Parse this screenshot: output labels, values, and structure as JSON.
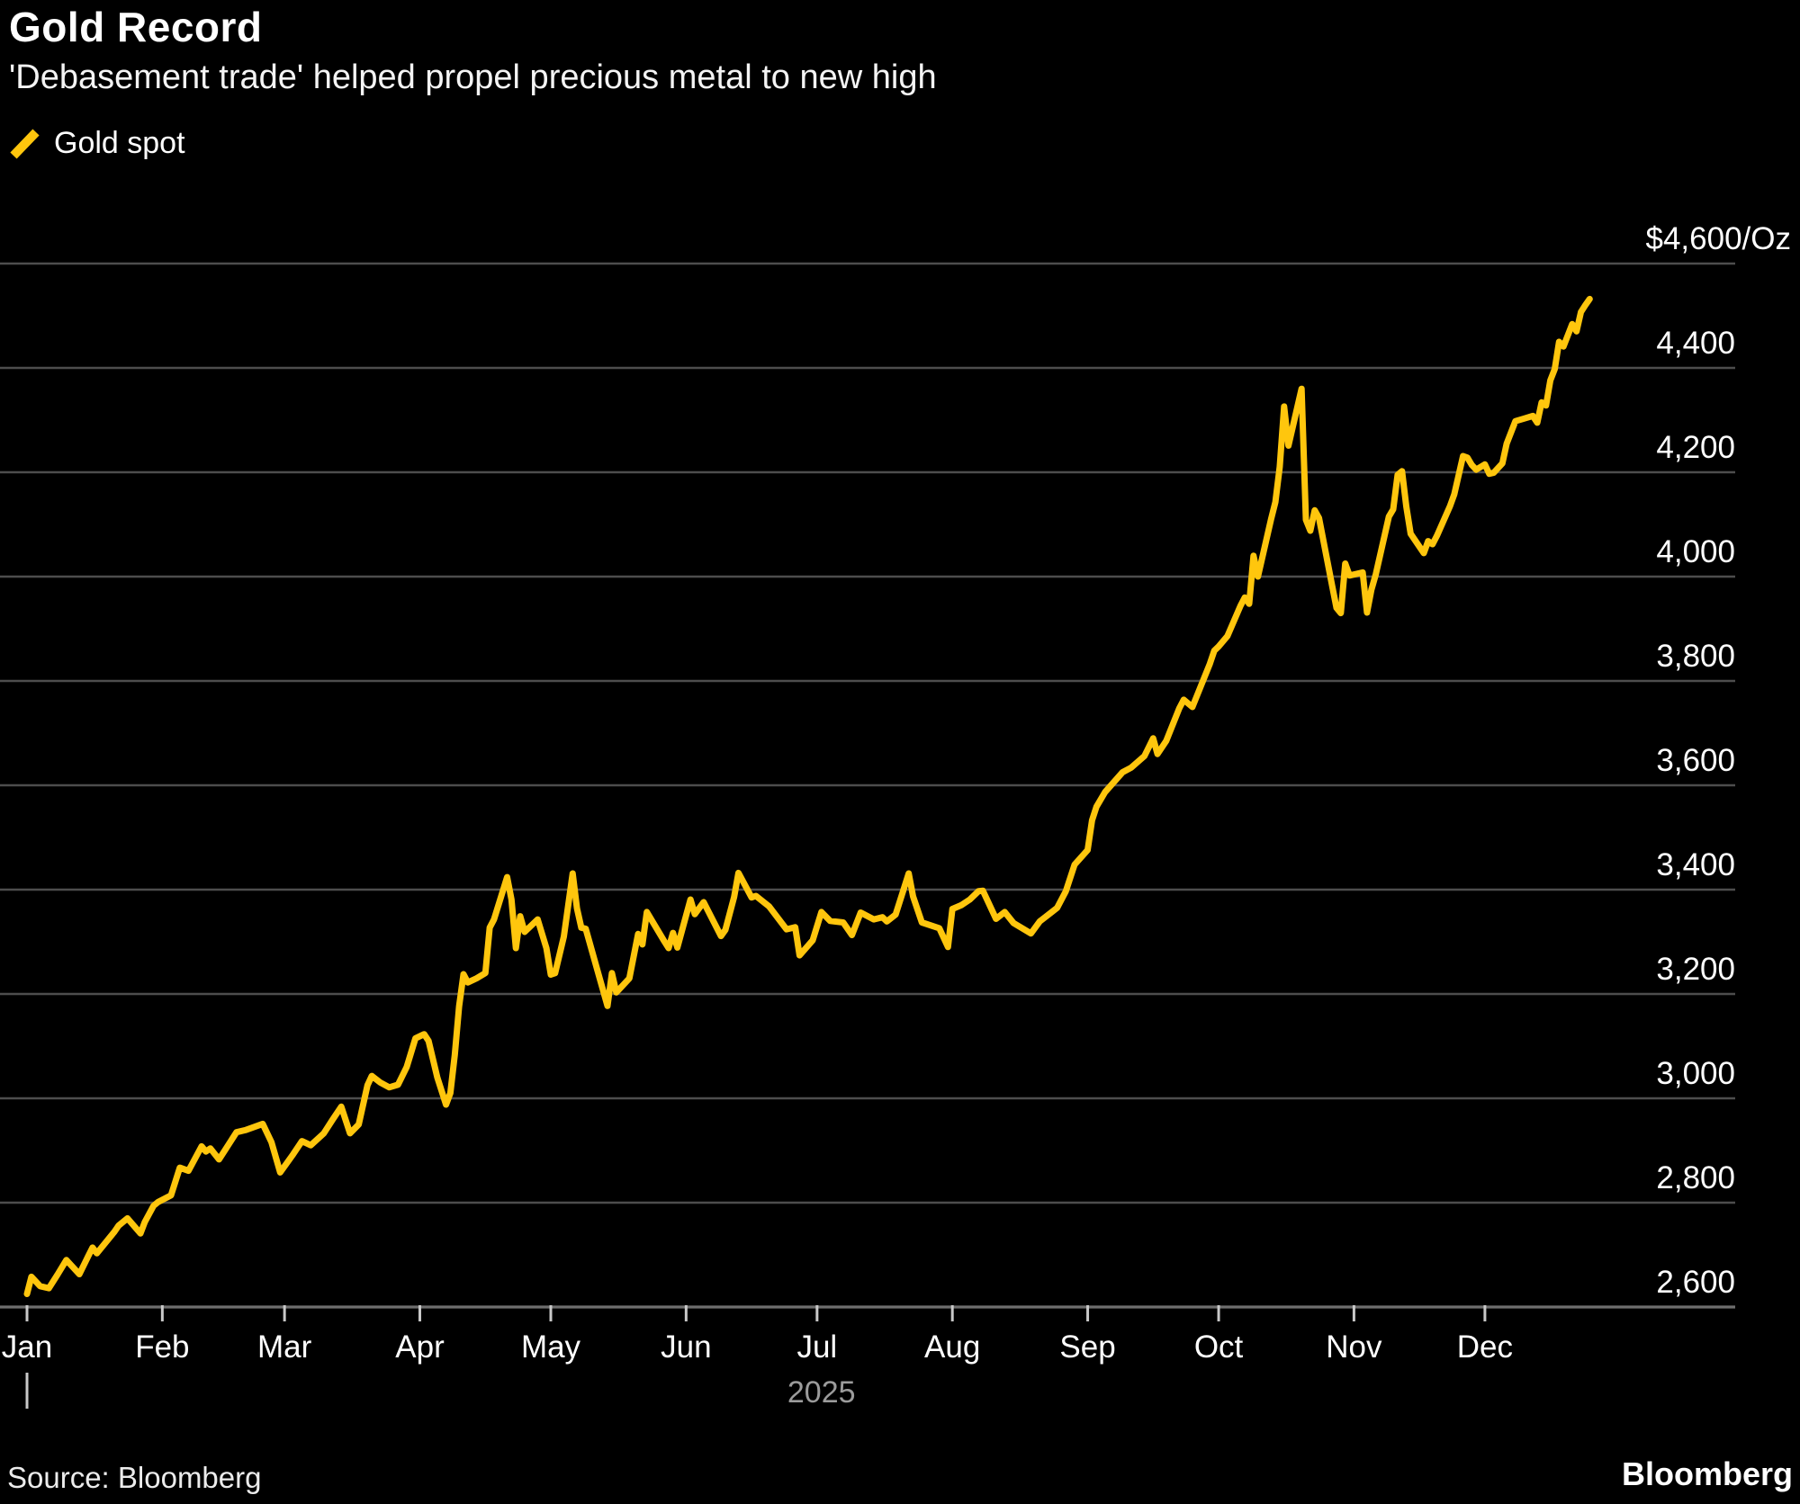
{
  "header": {
    "title": "Gold Record",
    "subtitle": "'Debasement trade' helped propel precious metal to new high"
  },
  "legend": {
    "label": "Gold spot"
  },
  "footer": {
    "source": "Source: Bloomberg",
    "logo": "Bloomberg"
  },
  "colors": {
    "background": "#000000",
    "text": "#ffffff",
    "muted_text": "#9b9b9b",
    "gridline": "#4d4d4d",
    "axis_line": "#6e6e6e",
    "tick": "#c8c8c8",
    "series_gold": "#ffc60d"
  },
  "chart_data": {
    "type": "line",
    "title": "Gold Record",
    "subtitle": "'Debasement trade' helped propel precious metal to new high",
    "legend_position": "top-left",
    "grid": "horizontal-only",
    "x_axis": {
      "unit": "day-of-year",
      "year_label": "2025",
      "months": [
        {
          "label": "Jan",
          "start_day": 1
        },
        {
          "label": "Feb",
          "start_day": 32
        },
        {
          "label": "Mar",
          "start_day": 60
        },
        {
          "label": "Apr",
          "start_day": 91
        },
        {
          "label": "May",
          "start_day": 121
        },
        {
          "label": "Jun",
          "start_day": 152
        },
        {
          "label": "Jul",
          "start_day": 182
        },
        {
          "label": "Aug",
          "start_day": 213
        },
        {
          "label": "Sep",
          "start_day": 244
        },
        {
          "label": "Oct",
          "start_day": 274
        },
        {
          "label": "Nov",
          "start_day": 305
        },
        {
          "label": "Dec",
          "start_day": 335
        }
      ]
    },
    "y_axis": {
      "side": "right",
      "unit": "$/Oz",
      "range": [
        2600,
        4600
      ],
      "ticks": [
        {
          "value": 4600,
          "label": "$4,600/Oz"
        },
        {
          "value": 4400,
          "label": "4,400"
        },
        {
          "value": 4200,
          "label": "4,200"
        },
        {
          "value": 4000,
          "label": "4,000"
        },
        {
          "value": 3800,
          "label": "3,800"
        },
        {
          "value": 3600,
          "label": "3,600"
        },
        {
          "value": 3400,
          "label": "3,400"
        },
        {
          "value": 3200,
          "label": "3,200"
        },
        {
          "value": 3000,
          "label": "3,000"
        },
        {
          "value": 2800,
          "label": "2,800"
        },
        {
          "value": 2600,
          "label": "2,600"
        }
      ]
    },
    "series": [
      {
        "name": "Gold spot",
        "color": "#ffc60d",
        "points": [
          [
            1,
            2625
          ],
          [
            2,
            2658
          ],
          [
            4,
            2640
          ],
          [
            6,
            2636
          ],
          [
            8,
            2662
          ],
          [
            10,
            2690
          ],
          [
            13,
            2663
          ],
          [
            15,
            2697
          ],
          [
            16,
            2714
          ],
          [
            17,
            2703
          ],
          [
            21,
            2744
          ],
          [
            22,
            2756
          ],
          [
            24,
            2770
          ],
          [
            27,
            2741
          ],
          [
            28,
            2763
          ],
          [
            30,
            2794
          ],
          [
            31,
            2801
          ],
          [
            34,
            2814
          ],
          [
            36,
            2867
          ],
          [
            38,
            2861
          ],
          [
            41,
            2908
          ],
          [
            42,
            2898
          ],
          [
            43,
            2904
          ],
          [
            45,
            2883
          ],
          [
            49,
            2935
          ],
          [
            51,
            2939
          ],
          [
            55,
            2951
          ],
          [
            57,
            2916
          ],
          [
            59,
            2858
          ],
          [
            62,
            2893
          ],
          [
            64,
            2918
          ],
          [
            66,
            2910
          ],
          [
            69,
            2933
          ],
          [
            71,
            2959
          ],
          [
            73,
            2984
          ],
          [
            75,
            2933
          ],
          [
            77,
            2950
          ],
          [
            79,
            3025
          ],
          [
            80,
            3043
          ],
          [
            82,
            3030
          ],
          [
            84,
            3021
          ],
          [
            86,
            3026
          ],
          [
            88,
            3060
          ],
          [
            90,
            3115
          ],
          [
            92,
            3123
          ],
          [
            93,
            3110
          ],
          [
            95,
            3040
          ],
          [
            97,
            2988
          ],
          [
            98,
            3010
          ],
          [
            99,
            3083
          ],
          [
            100,
            3176
          ],
          [
            101,
            3238
          ],
          [
            102,
            3222
          ],
          [
            104,
            3230
          ],
          [
            106,
            3240
          ],
          [
            107,
            3327
          ],
          [
            108,
            3343
          ],
          [
            111,
            3424
          ],
          [
            112,
            3381
          ],
          [
            113,
            3288
          ],
          [
            114,
            3349
          ],
          [
            115,
            3319
          ],
          [
            118,
            3343
          ],
          [
            120,
            3288
          ],
          [
            121,
            3237
          ],
          [
            122,
            3240
          ],
          [
            124,
            3310
          ],
          [
            126,
            3431
          ],
          [
            127,
            3364
          ],
          [
            128,
            3327
          ],
          [
            129,
            3325
          ],
          [
            132,
            3236
          ],
          [
            134,
            3177
          ],
          [
            135,
            3240
          ],
          [
            136,
            3203
          ],
          [
            139,
            3230
          ],
          [
            141,
            3315
          ],
          [
            142,
            3295
          ],
          [
            143,
            3357
          ],
          [
            147,
            3301
          ],
          [
            148,
            3288
          ],
          [
            149,
            3317
          ],
          [
            150,
            3289
          ],
          [
            153,
            3381
          ],
          [
            154,
            3353
          ],
          [
            156,
            3376
          ],
          [
            160,
            3311
          ],
          [
            161,
            3323
          ],
          [
            163,
            3386
          ],
          [
            164,
            3432
          ],
          [
            167,
            3385
          ],
          [
            168,
            3388
          ],
          [
            171,
            3368
          ],
          [
            175,
            3324
          ],
          [
            177,
            3328
          ],
          [
            178,
            3274
          ],
          [
            181,
            3303
          ],
          [
            183,
            3357
          ],
          [
            185,
            3340
          ],
          [
            188,
            3337
          ],
          [
            190,
            3313
          ],
          [
            192,
            3356
          ],
          [
            195,
            3343
          ],
          [
            197,
            3347
          ],
          [
            198,
            3339
          ],
          [
            200,
            3352
          ],
          [
            203,
            3431
          ],
          [
            204,
            3387
          ],
          [
            206,
            3337
          ],
          [
            210,
            3326
          ],
          [
            212,
            3290
          ],
          [
            213,
            3363
          ],
          [
            215,
            3370
          ],
          [
            217,
            3381
          ],
          [
            219,
            3397
          ],
          [
            220,
            3398
          ],
          [
            223,
            3344
          ],
          [
            225,
            3357
          ],
          [
            227,
            3336
          ],
          [
            231,
            3316
          ],
          [
            233,
            3339
          ],
          [
            237,
            3365
          ],
          [
            239,
            3397
          ],
          [
            241,
            3448
          ],
          [
            244,
            3476
          ],
          [
            245,
            3533
          ],
          [
            246,
            3559
          ],
          [
            248,
            3587
          ],
          [
            252,
            3625
          ],
          [
            254,
            3634
          ],
          [
            257,
            3656
          ],
          [
            259,
            3690
          ],
          [
            260,
            3660
          ],
          [
            262,
            3685
          ],
          [
            265,
            3748
          ],
          [
            266,
            3764
          ],
          [
            268,
            3750
          ],
          [
            272,
            3833
          ],
          [
            273,
            3858
          ],
          [
            274,
            3866
          ],
          [
            276,
            3886
          ],
          [
            279,
            3944
          ],
          [
            280,
            3960
          ],
          [
            281,
            3948
          ],
          [
            282,
            4040
          ],
          [
            283,
            4000
          ],
          [
            286,
            4110
          ],
          [
            287,
            4143
          ],
          [
            288,
            4210
          ],
          [
            289,
            4326
          ],
          [
            290,
            4251
          ],
          [
            293,
            4360
          ],
          [
            294,
            4109
          ],
          [
            295,
            4088
          ],
          [
            296,
            4127
          ],
          [
            297,
            4112
          ],
          [
            300,
            3983
          ],
          [
            301,
            3940
          ],
          [
            302,
            3930
          ],
          [
            303,
            4025
          ],
          [
            304,
            4002
          ],
          [
            307,
            4008
          ],
          [
            308,
            3931
          ],
          [
            309,
            3975
          ],
          [
            310,
            4004
          ],
          [
            313,
            4115
          ],
          [
            314,
            4129
          ],
          [
            315,
            4195
          ],
          [
            316,
            4202
          ],
          [
            317,
            4134
          ],
          [
            318,
            4082
          ],
          [
            321,
            4045
          ],
          [
            322,
            4068
          ],
          [
            323,
            4062
          ],
          [
            324,
            4078
          ],
          [
            327,
            4135
          ],
          [
            328,
            4158
          ],
          [
            330,
            4231
          ],
          [
            331,
            4228
          ],
          [
            332,
            4214
          ],
          [
            333,
            4205
          ],
          [
            335,
            4215
          ],
          [
            336,
            4197
          ],
          [
            337,
            4199
          ],
          [
            339,
            4217
          ],
          [
            340,
            4255
          ],
          [
            342,
            4298
          ],
          [
            344,
            4303
          ],
          [
            346,
            4308
          ],
          [
            347,
            4295
          ],
          [
            348,
            4334
          ],
          [
            349,
            4328
          ],
          [
            350,
            4376
          ],
          [
            351,
            4398
          ],
          [
            352,
            4450
          ],
          [
            353,
            4441
          ],
          [
            355,
            4484
          ],
          [
            356,
            4470
          ],
          [
            357,
            4507
          ],
          [
            358,
            4520
          ],
          [
            359,
            4532
          ]
        ]
      }
    ]
  }
}
